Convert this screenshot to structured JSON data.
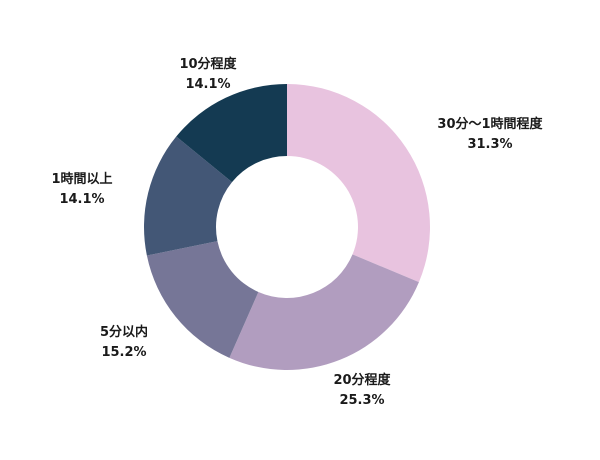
{
  "chart_data": {
    "type": "pie",
    "style": "donut",
    "title": "",
    "start_angle": "top",
    "direction": "clockwise",
    "categories": [
      "30分〜1時間程度",
      "20分程度",
      "5分以内",
      "1時間以上",
      "10分程度"
    ],
    "values": [
      31.3,
      25.3,
      15.2,
      14.1,
      14.1
    ],
    "value_labels": [
      "31.3%",
      "25.3%",
      "15.2%",
      "14.1%",
      "14.1%"
    ],
    "colors": [
      "#e8c3df",
      "#b19dbf",
      "#767697",
      "#435776",
      "#143a52"
    ]
  }
}
